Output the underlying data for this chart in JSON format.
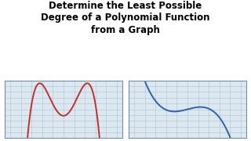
{
  "title_lines": [
    "Determine the Least Possible",
    "Degree of a Polynomial Function",
    "from a Graph"
  ],
  "title_fontsize": 8.5,
  "title_fontweight": "bold",
  "background_color": "#ffffff",
  "grid_color": "#b8c8d8",
  "graph_bg": "#dce8f0",
  "red_color": "#c03030",
  "blue_color": "#3060b0",
  "line_width": 1.4,
  "left_xlim": [
    -5.5,
    5.5
  ],
  "left_ylim": [
    -5,
    5
  ],
  "right_xlim": [
    -5.5,
    5.5
  ],
  "right_ylim": [
    -5,
    5
  ],
  "grid_step": 1
}
